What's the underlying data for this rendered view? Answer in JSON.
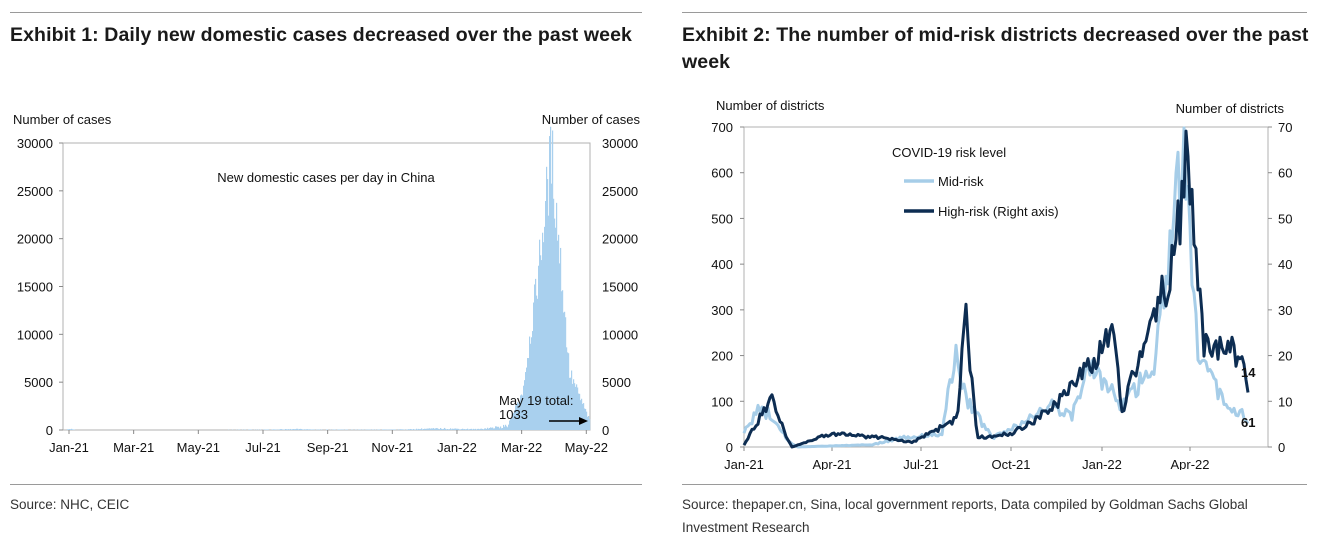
{
  "exhibits": [
    {
      "title": "Exhibit 1: Daily new domestic cases decreased over the past week",
      "source": "Source: NHC, CEIC"
    },
    {
      "title": "Exhibit 2: The number of mid-risk districts decreased over the past week",
      "source": "Source: thepaper.cn, Sina, local government reports, Data compiled by Goldman Sachs Global Investment Research"
    }
  ],
  "chart_data": [
    {
      "type": "bar",
      "title": "New domestic cases per day in China",
      "ylabel_left": "Number of cases",
      "ylabel_right": "Number of cases",
      "ylim": [
        0,
        30000
      ],
      "yticks": [
        "0",
        "5000",
        "10000",
        "15000",
        "20000",
        "25000",
        "30000"
      ],
      "xticks": [
        "Jan-21",
        "Mar-21",
        "May-21",
        "Jul-21",
        "Sep-21",
        "Nov-21",
        "Jan-22",
        "Mar-22",
        "May-22"
      ],
      "annotation": [
        "May 19 total:",
        "1033"
      ],
      "color": "#a9d0ee",
      "annotation_color": "#e8202a",
      "series": [
        {
          "name": "New domestic cases per day in China",
          "points": [
            [
              "Jan-21",
              150
            ],
            [
              "Feb-21",
              20
            ],
            [
              "Mar-21",
              0
            ],
            [
              "May-21",
              5
            ],
            [
              "Jul-21",
              40
            ],
            [
              "Aug-21",
              90
            ],
            [
              "Sep-21",
              40
            ],
            [
              "Oct-21",
              30
            ],
            [
              "Nov-21",
              60
            ],
            [
              "Dec-21",
              120
            ],
            [
              "Jan-22",
              150
            ],
            [
              "Feb-22",
              80
            ],
            [
              "Mar-22",
              400
            ],
            [
              "Mar-22 mid",
              4000
            ],
            [
              "Apr-22",
              14000
            ],
            [
              "Apr-22 peak",
              29000
            ],
            [
              "May-22",
              6000
            ],
            [
              "May-19-22",
              1033
            ]
          ]
        }
      ]
    },
    {
      "type": "line",
      "legend_title": "COVID-19 risk level",
      "ylabel_left": "Number of districts",
      "ylabel_right": "Number of districts",
      "ylim_left": [
        0,
        700
      ],
      "ylim_right": [
        0,
        70
      ],
      "yticks_left": [
        "0",
        "100",
        "200",
        "300",
        "400",
        "500",
        "600",
        "700"
      ],
      "yticks_right": [
        "0",
        "10",
        "20",
        "30",
        "40",
        "50",
        "60",
        "70"
      ],
      "xticks": [
        "Jan-21",
        "Apr-21",
        "Jul-21",
        "Oct-21",
        "Jan-22",
        "Apr-22"
      ],
      "end_labels": {
        "high": "14",
        "mid": "61"
      },
      "series": [
        {
          "name": "Mid-risk",
          "axis": "left",
          "color": "#a6cde8",
          "points": [
            [
              "Jan-21",
              30
            ],
            [
              "Jan-21 mid",
              80
            ],
            [
              "Feb-21",
              70
            ],
            [
              "Mar-21",
              15
            ],
            [
              "Mar-21 end",
              0
            ],
            [
              "May-21",
              5
            ],
            [
              "Jun-21",
              20
            ],
            [
              "Jul-21",
              30
            ],
            [
              "Jul-21 late",
              200
            ],
            [
              "Aug-21",
              100
            ],
            [
              "Sep-21",
              20
            ],
            [
              "Oct-21",
              40
            ],
            [
              "Nov-21",
              90
            ],
            [
              "Dec-21",
              70
            ],
            [
              "Jan-22",
              175
            ],
            [
              "Feb-22",
              90
            ],
            [
              "Mar-22",
              180
            ],
            [
              "Mar-22 late",
              600
            ],
            [
              "Apr-22",
              600
            ],
            [
              "Apr-22 late",
              200
            ],
            [
              "May-22",
              100
            ],
            [
              "May-22 end",
              61
            ]
          ]
        },
        {
          "name": "High-risk (Right axis)",
          "axis": "right",
          "color": "#0d2d52",
          "points": [
            [
              "Jan-21",
              0.5
            ],
            [
              "Jan-21 mid",
              11
            ],
            [
              "Feb-21",
              3
            ],
            [
              "Feb-21 end",
              0
            ],
            [
              "Apr-21",
              3
            ],
            [
              "Jun-21",
              2
            ],
            [
              "Jul-21",
              1
            ],
            [
              "Jul-21 late",
              6
            ],
            [
              "Aug-21",
              30
            ],
            [
              "Sep-21",
              2
            ],
            [
              "Oct-21",
              3
            ],
            [
              "Nov-21",
              8
            ],
            [
              "Dec-21",
              13
            ],
            [
              "Jan-22",
              21
            ],
            [
              "Jan-22 mid",
              27
            ],
            [
              "Feb-22",
              8
            ],
            [
              "Mar-22",
              40
            ],
            [
              "Mar-22 late",
              63
            ],
            [
              "Apr-22",
              55
            ],
            [
              "Apr-22 mid",
              22
            ],
            [
              "May-22",
              21
            ],
            [
              "May-22 end",
              14
            ]
          ]
        }
      ]
    }
  ]
}
